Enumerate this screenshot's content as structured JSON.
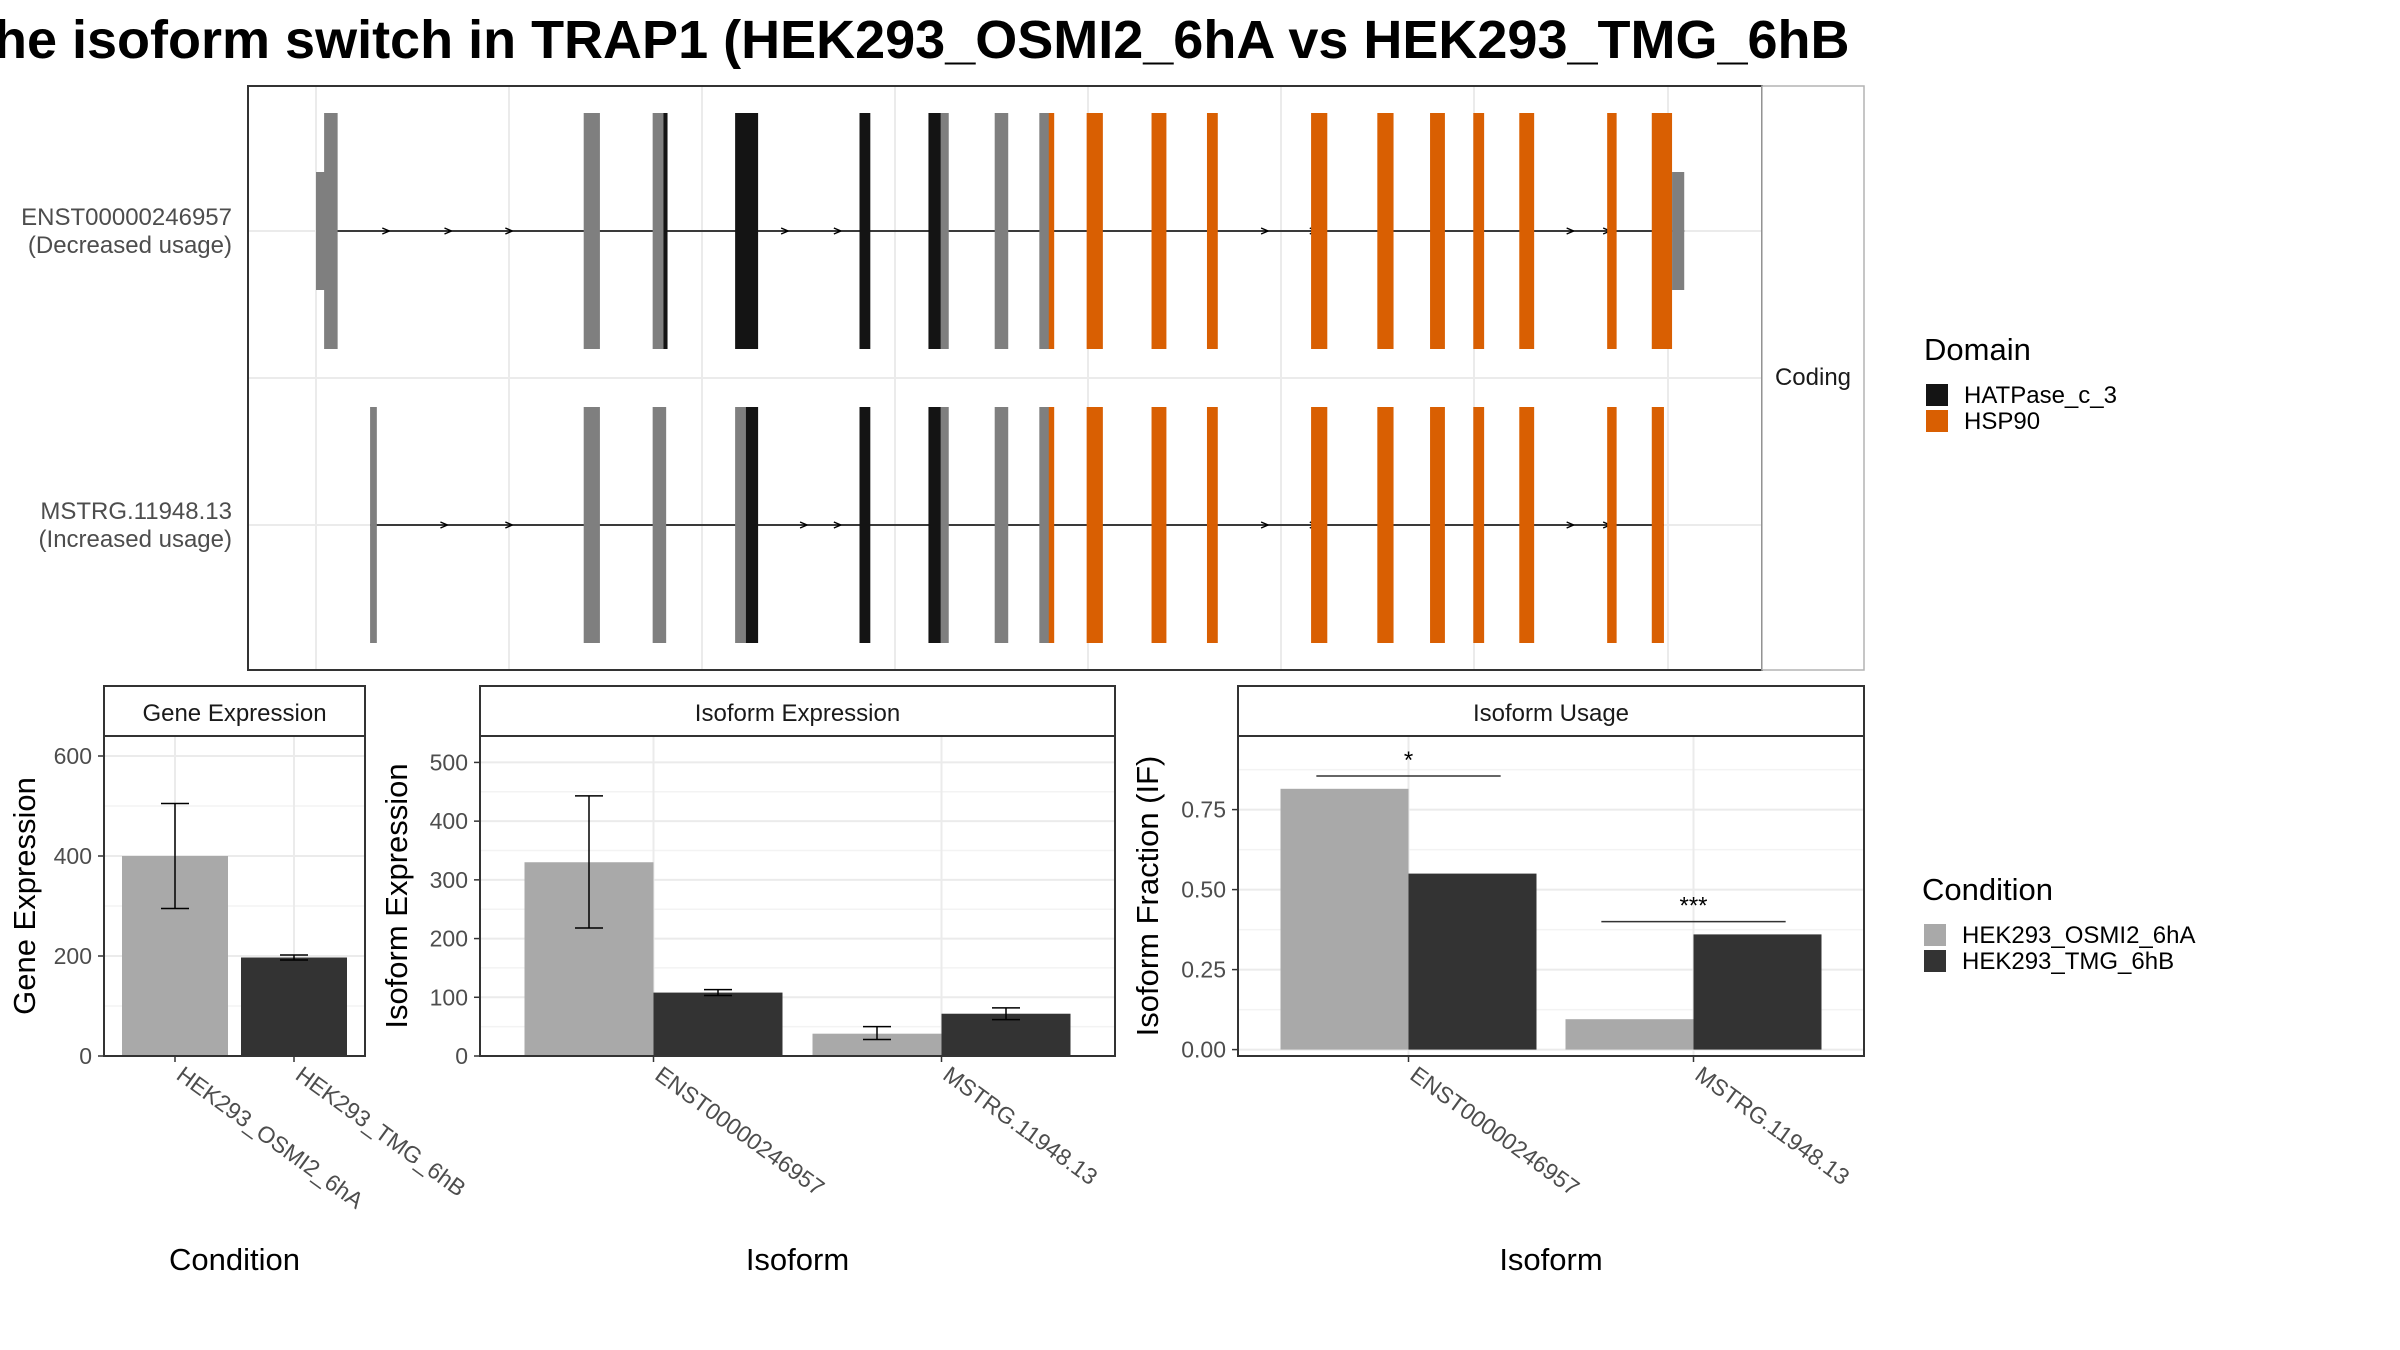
{
  "title": "he isoform switch in TRAP1 (HEK293_OSMI2_6hA vs HEK293_TMG_6hB",
  "colors": {
    "HEK293_OSMI2_6hA": "#a9a9a9",
    "HEK293_TMG_6hB": "#333333",
    "HATPase_c_3": "#141414",
    "HSP90": "#d95f02",
    "non_domain_exon": "#7f7f7f",
    "grid": "#ebebeb"
  },
  "structure": {
    "facet_label": "Coding",
    "transcripts": [
      {
        "id": "ENST00000246957",
        "label_line1": "ENST00000246957",
        "label_line2": "(Decreased usage)",
        "intron_arrows": [
          0.052,
          0.098,
          0.143,
          0.347,
          0.386,
          0.702,
          0.738,
          0.928,
          0.955
        ],
        "exons": [
          {
            "start": 0.0,
            "end": 0.012,
            "type": "utr"
          },
          {
            "start": 0.006,
            "end": 0.016,
            "type": "exon"
          },
          {
            "start": 0.198,
            "end": 0.21,
            "type": "exon"
          },
          {
            "start": 0.249,
            "end": 0.26,
            "type": "exon"
          },
          {
            "start": 0.257,
            "end": 0.26,
            "type": "HATPase_c_3"
          },
          {
            "start": 0.31,
            "end": 0.327,
            "type": "HATPase_c_3"
          },
          {
            "start": 0.402,
            "end": 0.41,
            "type": "HATPase_c_3"
          },
          {
            "start": 0.453,
            "end": 0.465,
            "type": "HATPase_c_3"
          },
          {
            "start": 0.462,
            "end": 0.468,
            "type": "exon"
          },
          {
            "start": 0.502,
            "end": 0.512,
            "type": "exon"
          },
          {
            "start": 0.535,
            "end": 0.544,
            "type": "exon"
          },
          {
            "start": 0.542,
            "end": 0.546,
            "type": "HSP90"
          },
          {
            "start": 0.57,
            "end": 0.582,
            "type": "HSP90"
          },
          {
            "start": 0.618,
            "end": 0.629,
            "type": "HSP90"
          },
          {
            "start": 0.659,
            "end": 0.667,
            "type": "HSP90"
          },
          {
            "start": 0.736,
            "end": 0.748,
            "type": "HSP90"
          },
          {
            "start": 0.785,
            "end": 0.797,
            "type": "HSP90"
          },
          {
            "start": 0.824,
            "end": 0.835,
            "type": "HSP90"
          },
          {
            "start": 0.856,
            "end": 0.864,
            "type": "HSP90"
          },
          {
            "start": 0.89,
            "end": 0.901,
            "type": "HSP90"
          },
          {
            "start": 0.955,
            "end": 0.962,
            "type": "HSP90"
          },
          {
            "start": 0.988,
            "end": 1.003,
            "type": "HSP90"
          },
          {
            "start": 1.003,
            "end": 1.012,
            "type": "utr"
          }
        ]
      },
      {
        "id": "MSTRG.11948.13",
        "label_line1": "MSTRG.11948.13",
        "label_line2": "(Increased usage)",
        "intron_arrows": [
          0.095,
          0.143,
          0.361,
          0.386,
          0.702,
          0.738,
          0.928,
          0.955
        ],
        "exons": [
          {
            "start": 0.04,
            "end": 0.045,
            "type": "exon"
          },
          {
            "start": 0.198,
            "end": 0.21,
            "type": "exon"
          },
          {
            "start": 0.249,
            "end": 0.259,
            "type": "exon"
          },
          {
            "start": 0.31,
            "end": 0.321,
            "type": "exon"
          },
          {
            "start": 0.318,
            "end": 0.327,
            "type": "HATPase_c_3"
          },
          {
            "start": 0.402,
            "end": 0.41,
            "type": "HATPase_c_3"
          },
          {
            "start": 0.453,
            "end": 0.465,
            "type": "HATPase_c_3"
          },
          {
            "start": 0.462,
            "end": 0.468,
            "type": "exon"
          },
          {
            "start": 0.502,
            "end": 0.512,
            "type": "exon"
          },
          {
            "start": 0.535,
            "end": 0.544,
            "type": "exon"
          },
          {
            "start": 0.542,
            "end": 0.546,
            "type": "HSP90"
          },
          {
            "start": 0.57,
            "end": 0.582,
            "type": "HSP90"
          },
          {
            "start": 0.618,
            "end": 0.629,
            "type": "HSP90"
          },
          {
            "start": 0.659,
            "end": 0.667,
            "type": "HSP90"
          },
          {
            "start": 0.736,
            "end": 0.748,
            "type": "HSP90"
          },
          {
            "start": 0.785,
            "end": 0.797,
            "type": "HSP90"
          },
          {
            "start": 0.824,
            "end": 0.835,
            "type": "HSP90"
          },
          {
            "start": 0.856,
            "end": 0.864,
            "type": "HSP90"
          },
          {
            "start": 0.89,
            "end": 0.901,
            "type": "HSP90"
          },
          {
            "start": 0.955,
            "end": 0.962,
            "type": "HSP90"
          },
          {
            "start": 0.988,
            "end": 0.997,
            "type": "HSP90"
          }
        ]
      }
    ]
  },
  "legend_domain": {
    "title": "Domain",
    "items": [
      {
        "label": "HATPase_c_3",
        "color": "#141414"
      },
      {
        "label": "HSP90",
        "color": "#d95f02"
      }
    ]
  },
  "legend_condition": {
    "title": "Condition",
    "items": [
      {
        "label": "HEK293_OSMI2_6hA",
        "color": "#a9a9a9"
      },
      {
        "label": "HEK293_TMG_6hB",
        "color": "#333333"
      }
    ]
  },
  "chart_data": [
    {
      "type": "bar",
      "title": "Gene Expression",
      "xlabel": "Condition",
      "ylabel": "Gene Expression",
      "ylim": [
        0,
        640
      ],
      "yticks": [
        0,
        200,
        400,
        600
      ],
      "categories": [
        "HEK293_OSMI2_6hA",
        "HEK293_TMG_6hB"
      ],
      "values": [
        400,
        197
      ],
      "errors": [
        [
          295,
          505
        ],
        [
          192,
          202
        ]
      ]
    },
    {
      "type": "bar",
      "title": "Isoform Expression",
      "xlabel": "Isoform",
      "ylabel": "Isoform Expression",
      "ylim": [
        0,
        545
      ],
      "yticks": [
        0,
        100,
        200,
        300,
        400,
        500
      ],
      "categories": [
        "ENST00000246957",
        "MSTRG.11948.13"
      ],
      "series": [
        {
          "name": "HEK293_OSMI2_6hA",
          "values": [
            330,
            38
          ],
          "errors": [
            [
              218,
              443
            ],
            [
              28,
              50
            ]
          ]
        },
        {
          "name": "HEK293_TMG_6hB",
          "values": [
            108,
            72
          ],
          "errors": [
            [
              103,
              113
            ],
            [
              62,
              82
            ]
          ]
        }
      ]
    },
    {
      "type": "bar",
      "title": "Isoform Usage",
      "xlabel": "Isoform",
      "ylabel": "Isoform Fraction (IF)",
      "ylim": [
        -0.02,
        0.98
      ],
      "yticks": [
        0,
        0.25,
        0.5,
        0.75
      ],
      "ytick_labels": [
        "0.00",
        "0.25",
        "0.50",
        "0.75"
      ],
      "categories": [
        "ENST00000246957",
        "MSTRG.11948.13"
      ],
      "series": [
        {
          "name": "HEK293_OSMI2_6hA",
          "values": [
            0.815,
            0.095
          ]
        },
        {
          "name": "HEK293_TMG_6hB",
          "values": [
            0.55,
            0.36
          ]
        }
      ],
      "significance": [
        {
          "category": "ENST00000246957",
          "label": "*",
          "y": 0.855
        },
        {
          "category": "MSTRG.11948.13",
          "label": "***",
          "y": 0.4
        }
      ]
    }
  ]
}
